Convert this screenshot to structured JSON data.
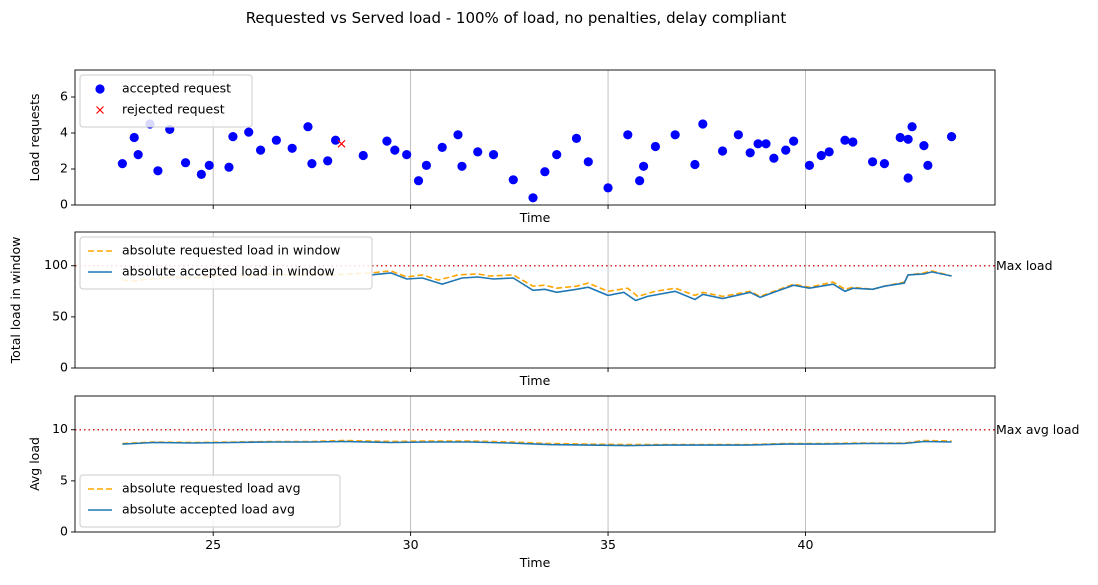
{
  "title": "Requested vs Served load - 100% of load, no penalties, delay compliant",
  "colors": {
    "accepted": "#0000ff",
    "rejected": "#ff0000",
    "requested_line": "#ffa500",
    "accepted_line": "#1f77b4",
    "max_line": "#d62728",
    "grid": "#b0b0b0"
  },
  "chart_data": [
    {
      "type": "scatter",
      "xlabel": "Time",
      "ylabel": "Load requests",
      "xlim": [
        21.5,
        44.8
      ],
      "ylim": [
        0,
        7.5
      ],
      "yticks": [
        0,
        2,
        4,
        6
      ],
      "xticks": [
        25,
        30,
        35,
        40
      ],
      "show_xtick_labels": false,
      "grid": "x",
      "legend_position": "top-left",
      "series": [
        {
          "name": "accepted request",
          "marker": "circle",
          "points": [
            [
              22.7,
              2.3
            ],
            [
              23.0,
              3.75
            ],
            [
              23.1,
              2.8
            ],
            [
              23.4,
              4.5
            ],
            [
              23.6,
              1.9
            ],
            [
              23.9,
              4.2
            ],
            [
              24.3,
              2.35
            ],
            [
              24.7,
              1.7
            ],
            [
              24.9,
              2.2
            ],
            [
              25.4,
              2.1
            ],
            [
              25.5,
              3.8
            ],
            [
              25.9,
              4.05
            ],
            [
              26.2,
              3.05
            ],
            [
              26.6,
              3.6
            ],
            [
              27.0,
              3.15
            ],
            [
              27.4,
              4.35
            ],
            [
              27.5,
              2.3
            ],
            [
              27.9,
              2.45
            ],
            [
              28.1,
              3.6
            ],
            [
              28.8,
              2.75
            ],
            [
              29.4,
              3.55
            ],
            [
              29.6,
              3.05
            ],
            [
              29.9,
              2.8
            ],
            [
              30.2,
              1.35
            ],
            [
              30.4,
              2.2
            ],
            [
              30.8,
              3.2
            ],
            [
              31.2,
              3.9
            ],
            [
              31.3,
              2.15
            ],
            [
              31.7,
              2.95
            ],
            [
              32.1,
              2.8
            ],
            [
              32.6,
              1.4
            ],
            [
              33.1,
              0.4
            ],
            [
              33.4,
              1.85
            ],
            [
              33.7,
              2.8
            ],
            [
              34.2,
              3.7
            ],
            [
              34.5,
              2.4
            ],
            [
              35.0,
              0.95
            ],
            [
              35.5,
              3.9
            ],
            [
              35.8,
              1.35
            ],
            [
              35.9,
              2.15
            ],
            [
              36.2,
              3.25
            ],
            [
              36.7,
              3.9
            ],
            [
              37.2,
              2.25
            ],
            [
              37.4,
              4.5
            ],
            [
              37.9,
              3.0
            ],
            [
              38.3,
              3.9
            ],
            [
              38.6,
              2.9
            ],
            [
              38.8,
              3.4
            ],
            [
              39.0,
              3.4
            ],
            [
              39.2,
              2.6
            ],
            [
              39.5,
              3.05
            ],
            [
              39.7,
              3.55
            ],
            [
              40.1,
              2.2
            ],
            [
              40.4,
              2.75
            ],
            [
              40.6,
              2.95
            ],
            [
              41.0,
              3.6
            ],
            [
              41.2,
              3.5
            ],
            [
              41.7,
              2.4
            ],
            [
              42.0,
              2.3
            ],
            [
              42.4,
              3.75
            ],
            [
              42.6,
              1.5
            ],
            [
              42.6,
              3.65
            ],
            [
              42.7,
              4.35
            ],
            [
              43.0,
              3.3
            ],
            [
              43.1,
              2.2
            ],
            [
              43.7,
              3.8
            ]
          ]
        },
        {
          "name": "rejected request",
          "marker": "x",
          "points": [
            [
              28.25,
              3.4
            ]
          ]
        }
      ]
    },
    {
      "type": "line",
      "xlabel": "Time",
      "ylabel": "Total load in window",
      "xlim": [
        21.5,
        44.8
      ],
      "ylim": [
        0,
        133
      ],
      "yticks": [
        0,
        50,
        100
      ],
      "xticks": [
        25,
        30,
        35,
        40
      ],
      "show_xtick_labels": false,
      "grid": "x",
      "legend_position": "top-left",
      "threshold": {
        "value": 100,
        "label": "Max load"
      },
      "series": [
        {
          "name": "absolute requested load in window",
          "style": "dashed",
          "points": [
            [
              22.7,
              86
            ],
            [
              23.0,
              85
            ],
            [
              23.4,
              87
            ],
            [
              24.0,
              89
            ],
            [
              24.5,
              88
            ],
            [
              25.0,
              90
            ],
            [
              25.5,
              91
            ],
            [
              26.0,
              90
            ],
            [
              26.5,
              92
            ],
            [
              27.0,
              91
            ],
            [
              27.5,
              92
            ],
            [
              28.0,
              91
            ],
            [
              28.5,
              92
            ],
            [
              29.0,
              93
            ],
            [
              29.5,
              95
            ],
            [
              29.9,
              89
            ],
            [
              30.3,
              91
            ],
            [
              30.7,
              86
            ],
            [
              31.2,
              91
            ],
            [
              31.7,
              92
            ],
            [
              32.0,
              90
            ],
            [
              32.6,
              91
            ],
            [
              33.1,
              80
            ],
            [
              33.4,
              81
            ],
            [
              33.7,
              78
            ],
            [
              34.2,
              80
            ],
            [
              34.5,
              83
            ],
            [
              35.0,
              75
            ],
            [
              35.5,
              78
            ],
            [
              35.75,
              70
            ],
            [
              36.2,
              75
            ],
            [
              36.7,
              78
            ],
            [
              37.2,
              71
            ],
            [
              37.4,
              74
            ],
            [
              37.9,
              70
            ],
            [
              38.6,
              75
            ],
            [
              38.85,
              70
            ],
            [
              39.2,
              75
            ],
            [
              39.7,
              82
            ],
            [
              40.1,
              79
            ],
            [
              40.7,
              84
            ],
            [
              41.0,
              77
            ],
            [
              41.2,
              79
            ],
            [
              41.7,
              77
            ],
            [
              42.0,
              80
            ],
            [
              42.5,
              84
            ],
            [
              42.6,
              91
            ],
            [
              43.0,
              93
            ],
            [
              43.2,
              95
            ],
            [
              43.7,
              90
            ]
          ]
        },
        {
          "name": "absolute accepted load in window",
          "style": "solid",
          "points": [
            [
              29.0,
              91
            ],
            [
              29.5,
              93
            ],
            [
              29.9,
              87
            ],
            [
              30.3,
              88
            ],
            [
              30.8,
              82
            ],
            [
              31.3,
              88
            ],
            [
              31.7,
              89
            ],
            [
              32.1,
              87
            ],
            [
              32.6,
              88
            ],
            [
              33.1,
              76
            ],
            [
              33.4,
              77
            ],
            [
              33.7,
              74
            ],
            [
              34.2,
              77
            ],
            [
              34.5,
              79
            ],
            [
              35.0,
              71
            ],
            [
              35.4,
              74
            ],
            [
              35.7,
              66
            ],
            [
              36.0,
              70
            ],
            [
              36.7,
              75
            ],
            [
              37.2,
              67
            ],
            [
              37.4,
              72
            ],
            [
              37.9,
              68
            ],
            [
              38.6,
              74
            ],
            [
              38.85,
              69
            ],
            [
              39.2,
              74
            ],
            [
              39.7,
              81
            ],
            [
              40.1,
              78
            ],
            [
              40.7,
              82
            ],
            [
              41.0,
              75
            ],
            [
              41.2,
              78
            ],
            [
              41.7,
              77
            ],
            [
              42.0,
              80
            ],
            [
              42.5,
              83
            ],
            [
              42.6,
              91
            ],
            [
              43.0,
              92
            ],
            [
              43.2,
              94
            ],
            [
              43.7,
              90
            ]
          ]
        }
      ]
    },
    {
      "type": "line",
      "xlabel": "Time",
      "ylabel": "Avg load",
      "xlim": [
        21.5,
        44.8
      ],
      "ylim": [
        0,
        13.3
      ],
      "yticks": [
        0,
        5,
        10
      ],
      "xticks": [
        25,
        30,
        35,
        40
      ],
      "show_xtick_labels": true,
      "grid": "x",
      "legend_position": "bottom-left",
      "threshold": {
        "value": 10,
        "label": "Max avg load"
      },
      "series": [
        {
          "name": "absolute requested load avg",
          "style": "dashed",
          "points": [
            [
              22.7,
              8.65
            ],
            [
              23.5,
              8.8
            ],
            [
              24.5,
              8.75
            ],
            [
              25.5,
              8.8
            ],
            [
              26.5,
              8.85
            ],
            [
              27.5,
              8.85
            ],
            [
              28.3,
              8.95
            ],
            [
              29.5,
              8.85
            ],
            [
              30.5,
              8.9
            ],
            [
              31.5,
              8.9
            ],
            [
              32.5,
              8.8
            ],
            [
              33.5,
              8.65
            ],
            [
              34.5,
              8.6
            ],
            [
              35.5,
              8.55
            ],
            [
              36.5,
              8.55
            ],
            [
              37.5,
              8.55
            ],
            [
              38.5,
              8.55
            ],
            [
              39.5,
              8.65
            ],
            [
              40.5,
              8.65
            ],
            [
              41.5,
              8.7
            ],
            [
              42.5,
              8.7
            ],
            [
              43.0,
              8.95
            ],
            [
              43.7,
              8.9
            ]
          ]
        },
        {
          "name": "absolute accepted load avg",
          "style": "solid",
          "points": [
            [
              22.7,
              8.6
            ],
            [
              23.5,
              8.75
            ],
            [
              24.5,
              8.7
            ],
            [
              25.5,
              8.75
            ],
            [
              26.5,
              8.8
            ],
            [
              27.5,
              8.8
            ],
            [
              28.3,
              8.85
            ],
            [
              29.5,
              8.75
            ],
            [
              30.5,
              8.8
            ],
            [
              31.5,
              8.8
            ],
            [
              32.5,
              8.7
            ],
            [
              33.5,
              8.55
            ],
            [
              34.5,
              8.5
            ],
            [
              35.5,
              8.45
            ],
            [
              36.5,
              8.5
            ],
            [
              37.5,
              8.5
            ],
            [
              38.5,
              8.5
            ],
            [
              39.5,
              8.6
            ],
            [
              40.5,
              8.6
            ],
            [
              41.5,
              8.65
            ],
            [
              42.5,
              8.65
            ],
            [
              43.0,
              8.85
            ],
            [
              43.7,
              8.8
            ]
          ]
        }
      ]
    }
  ]
}
